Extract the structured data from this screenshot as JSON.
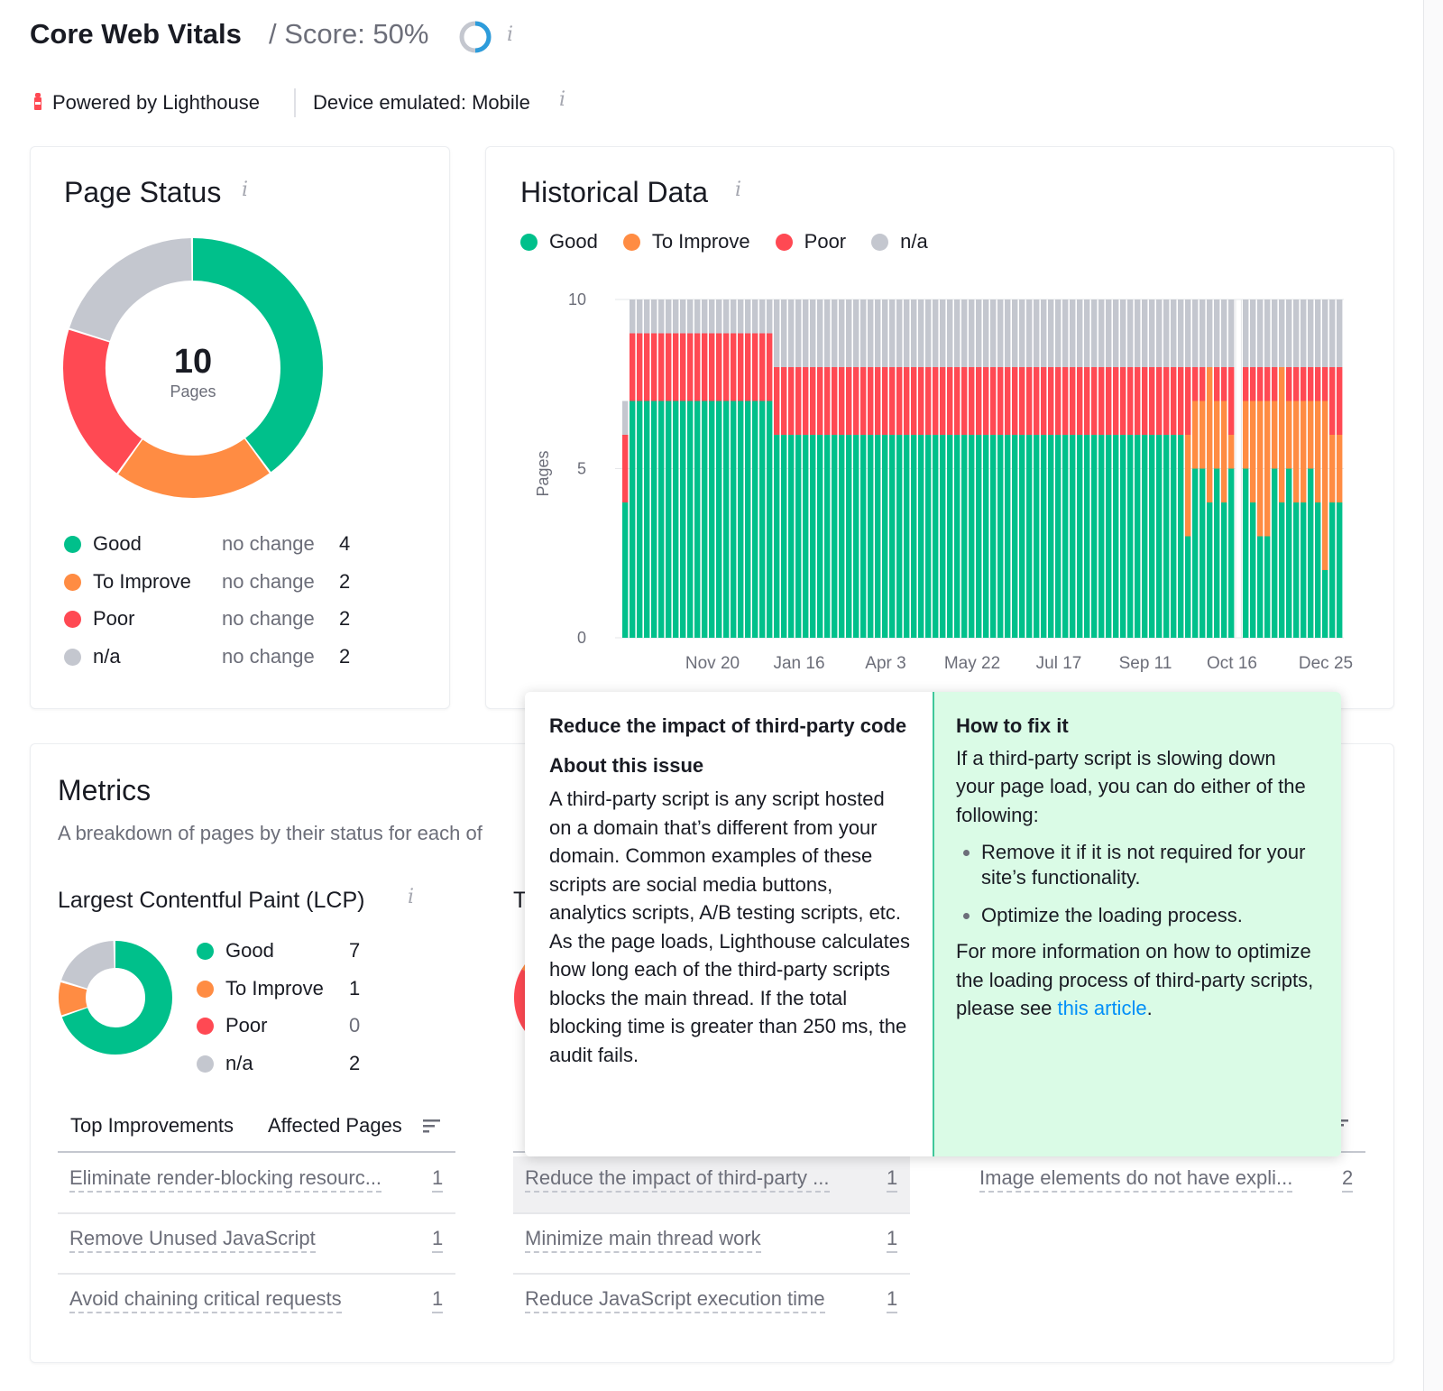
{
  "header": {
    "title": "Core Web Vitals",
    "score": "/ Score: 50%",
    "score_value": 50,
    "powered_by": "Powered by Lighthouse",
    "device": "Device emulated: Mobile"
  },
  "colors": {
    "good": "#00c08b",
    "improve": "#ff8c43",
    "poor": "#ff4953",
    "na": "#c4c7cf",
    "score_ring": "#2d9cdb",
    "link": "#008ff8"
  },
  "page_status": {
    "title": "Page Status",
    "total": "10",
    "total_label": "Pages",
    "items": [
      {
        "label": "Good",
        "change": "no change",
        "value": 4
      },
      {
        "label": "To Improve",
        "change": "no change",
        "value": 2
      },
      {
        "label": "Poor",
        "change": "no change",
        "value": 2
      },
      {
        "label": "n/a",
        "change": "no change",
        "value": 2
      }
    ]
  },
  "historical": {
    "title": "Historical Data",
    "legend": [
      "Good",
      "To Improve",
      "Poor",
      "n/a"
    ]
  },
  "chart_data": {
    "type": "bar",
    "stacked": true,
    "ylabel": "Pages",
    "ylim": [
      0,
      10
    ],
    "yticks": [
      0,
      5,
      10
    ],
    "grid": true,
    "legend": "top-left",
    "x_ticks": [
      {
        "label": "Nov 20",
        "at": 12
      },
      {
        "label": "Jan 16",
        "at": 24
      },
      {
        "label": "Apr 3",
        "at": 36
      },
      {
        "label": "May 22",
        "at": 48
      },
      {
        "label": "Jul 17",
        "at": 60
      },
      {
        "label": "Sep 11",
        "at": 72
      },
      {
        "label": "Oct 16",
        "at": 84
      },
      {
        "label": "Dec 25",
        "at": 97
      }
    ],
    "series": [
      {
        "name": "Good",
        "values": [
          4,
          7,
          7,
          7,
          7,
          7,
          7,
          7,
          7,
          7,
          7,
          7,
          7,
          7,
          7,
          7,
          7,
          7,
          7,
          7,
          7,
          6,
          6,
          6,
          6,
          6,
          6,
          6,
          6,
          6,
          6,
          6,
          6,
          6,
          6,
          6,
          6,
          6,
          6,
          6,
          6,
          6,
          6,
          6,
          6,
          6,
          6,
          6,
          6,
          6,
          6,
          6,
          6,
          6,
          6,
          6,
          6,
          6,
          6,
          6,
          6,
          6,
          6,
          6,
          6,
          6,
          6,
          6,
          6,
          6,
          6,
          6,
          6,
          6,
          6,
          6,
          6,
          6,
          3,
          5,
          5,
          4,
          5,
          4,
          5,
          null,
          5,
          4,
          3,
          3,
          5,
          4,
          5,
          4,
          4,
          5,
          4,
          2,
          4,
          4
        ]
      },
      {
        "name": "To Improve",
        "values": [
          0,
          0,
          0,
          0,
          0,
          0,
          0,
          0,
          0,
          0,
          0,
          0,
          0,
          0,
          0,
          0,
          0,
          0,
          0,
          0,
          0,
          0,
          0,
          0,
          0,
          0,
          0,
          0,
          0,
          0,
          0,
          0,
          0,
          0,
          0,
          0,
          0,
          0,
          0,
          0,
          0,
          0,
          0,
          0,
          0,
          0,
          0,
          0,
          0,
          0,
          0,
          0,
          0,
          0,
          0,
          0,
          0,
          0,
          0,
          0,
          0,
          0,
          0,
          0,
          0,
          0,
          0,
          0,
          0,
          0,
          0,
          0,
          0,
          0,
          0,
          0,
          0,
          0,
          3,
          2,
          2,
          4,
          2,
          3,
          1,
          null,
          2,
          3,
          4,
          4,
          2,
          4,
          2,
          3,
          3,
          2,
          3,
          5,
          2,
          2
        ]
      },
      {
        "name": "Poor",
        "values": [
          2,
          2,
          2,
          2,
          2,
          2,
          2,
          2,
          2,
          2,
          2,
          2,
          2,
          2,
          2,
          2,
          2,
          2,
          2,
          2,
          2,
          2,
          2,
          2,
          2,
          2,
          2,
          2,
          2,
          2,
          2,
          2,
          2,
          2,
          2,
          2,
          2,
          2,
          2,
          2,
          2,
          2,
          2,
          2,
          2,
          2,
          2,
          2,
          2,
          2,
          2,
          2,
          2,
          2,
          2,
          2,
          2,
          2,
          2,
          2,
          2,
          2,
          2,
          2,
          2,
          2,
          2,
          2,
          2,
          2,
          2,
          2,
          2,
          2,
          2,
          2,
          2,
          2,
          2,
          1,
          1,
          0,
          1,
          1,
          2,
          null,
          1,
          1,
          1,
          1,
          1,
          0,
          1,
          1,
          1,
          1,
          1,
          1,
          2,
          2
        ]
      },
      {
        "name": "n/a",
        "values": [
          1,
          1,
          1,
          1,
          1,
          1,
          1,
          1,
          1,
          1,
          1,
          1,
          1,
          1,
          1,
          1,
          1,
          1,
          1,
          1,
          1,
          2,
          2,
          2,
          2,
          2,
          2,
          2,
          2,
          2,
          2,
          2,
          2,
          2,
          2,
          2,
          2,
          2,
          2,
          2,
          2,
          2,
          2,
          2,
          2,
          2,
          2,
          2,
          2,
          2,
          2,
          2,
          2,
          2,
          2,
          2,
          2,
          2,
          2,
          2,
          2,
          2,
          2,
          2,
          2,
          2,
          2,
          2,
          2,
          2,
          2,
          2,
          2,
          2,
          2,
          2,
          2,
          2,
          2,
          2,
          2,
          2,
          2,
          2,
          2,
          null,
          2,
          2,
          2,
          2,
          2,
          2,
          2,
          2,
          2,
          2,
          2,
          2,
          2,
          2
        ]
      }
    ]
  },
  "metrics": {
    "title": "Metrics",
    "subtitle": "A breakdown of pages by their status for each of",
    "lcp": {
      "title": "Largest Contentful Paint (LCP)",
      "items": [
        {
          "label": "Good",
          "value": 7
        },
        {
          "label": "To Improve",
          "value": 1
        },
        {
          "label": "Poor",
          "value": 0
        },
        {
          "label": "n/a",
          "value": 2
        }
      ],
      "table_header": {
        "col1": "Top Improvements",
        "col2": "Affected Pages"
      },
      "rows": [
        {
          "name": "Eliminate render-blocking resourc...",
          "pages": "1"
        },
        {
          "name": "Remove Unused JavaScript",
          "pages": "1"
        },
        {
          "name": "Avoid chaining critical requests",
          "pages": "1"
        }
      ]
    },
    "second": {
      "title": "T",
      "rows": [
        {
          "name": "Reduce the impact of third-party ...",
          "pages": "1"
        },
        {
          "name": "Minimize main thread work",
          "pages": "1"
        },
        {
          "name": "Reduce JavaScript execution time",
          "pages": "1"
        }
      ]
    },
    "third": {
      "rows": [
        {
          "name": "Image elements do not have expli...",
          "pages": "2"
        }
      ]
    }
  },
  "tooltip": {
    "title": "Reduce the impact of third-party code",
    "about_heading": "About this issue",
    "about_text": "A third-party script is any script hosted on a domain that’s different from your domain. Common examples of these scripts are social media buttons, analytics scripts, A/B testing scripts, etc. As the page loads, Lighthouse calculates how long each of the third-party scripts blocks the main thread. If the total blocking time is greater than 250 ms, the audit fails.",
    "fix_heading": "How to fix it",
    "fix_intro": "If a third-party script is slowing down your page load, you can do either of the following:",
    "fix_bullets": [
      "Remove it if it is not required for your site’s functionality.",
      "Optimize the loading process."
    ],
    "more_text": "For more information on how to optimize the loading process of third-party scripts, please see ",
    "link_text": "this article",
    "more_end": "."
  }
}
